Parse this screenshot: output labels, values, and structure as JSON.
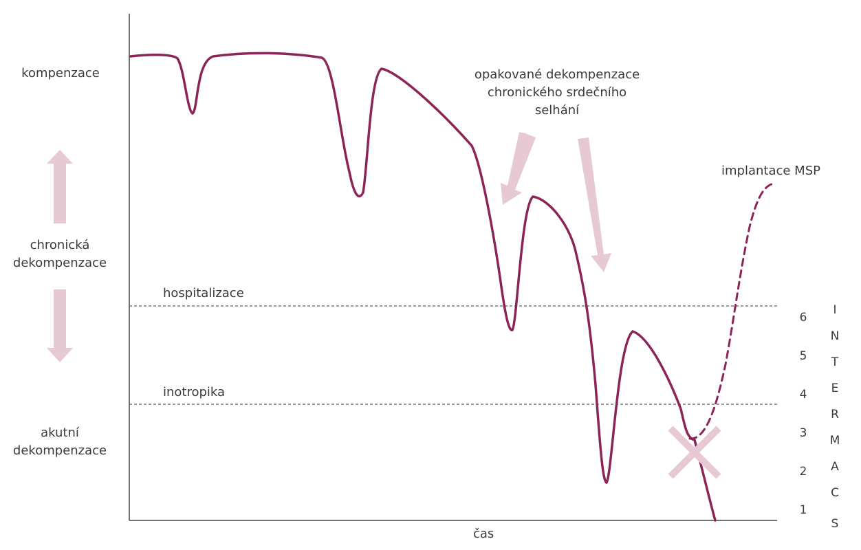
{
  "y_axis_labels": {
    "top": "kompenzace",
    "middle": [
      "chronická",
      "dekompenzace"
    ],
    "bottom": [
      "akutní",
      "dekompenzace"
    ]
  },
  "x_axis_label": "čas",
  "threshold_lines": {
    "hospitalization": "hospitalizace",
    "inotropics": "inotropika"
  },
  "annotations": {
    "repeated": [
      "opakované dekompenzace",
      "chronického srdečního",
      "selhání"
    ],
    "implant": "implantace MSP"
  },
  "intermacs": {
    "levels": [
      "6",
      "5",
      "4",
      "3",
      "2",
      "1"
    ],
    "letters": [
      "I",
      "N",
      "T",
      "E",
      "R",
      "M",
      "A",
      "C",
      "S"
    ]
  },
  "colors": {
    "curve": "#8b2558",
    "arrow": "#e6c9d3",
    "axis": "#444444",
    "dashed": "#777777"
  }
}
